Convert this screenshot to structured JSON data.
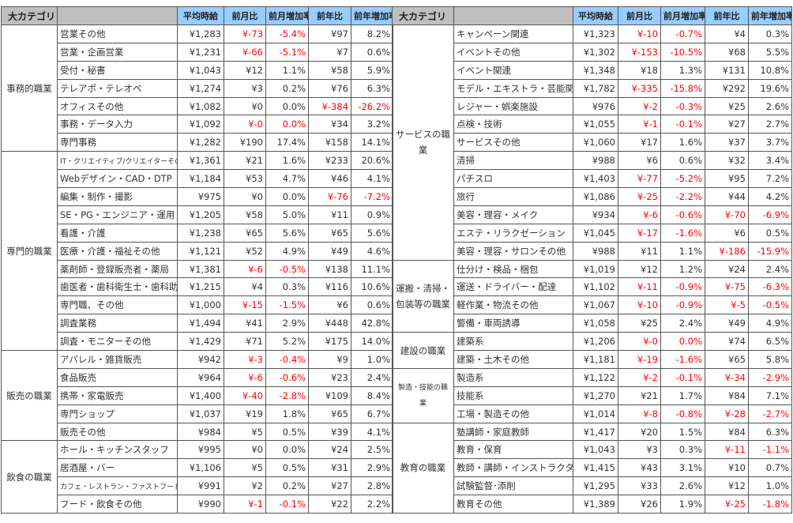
{
  "headers": {
    "category": "大カテゴリ",
    "sub": "",
    "avg": "平均時給",
    "mom": "前月比",
    "mom_rate": "前月増加率",
    "yoy": "前年比",
    "yoy_rate": "前年増加率"
  },
  "colors": {
    "negative": "#ff0000",
    "header_gray": "#bfbfbf",
    "header_blue": "#99ccff"
  },
  "left": [
    {
      "category": "事務的職業",
      "rows": [
        [
          "営業その他",
          "¥1,283",
          "¥-73",
          "-5.4%",
          "¥97",
          "8.2%"
        ],
        [
          "営業・企画営業",
          "¥1,231",
          "¥-66",
          "-5.1%",
          "¥7",
          "0.6%"
        ],
        [
          "受付・秘書",
          "¥1,043",
          "¥12",
          "1.1%",
          "¥58",
          "5.9%"
        ],
        [
          "テレアポ・テレオペ",
          "¥1,274",
          "¥3",
          "0.2%",
          "¥76",
          "6.3%"
        ],
        [
          "オフィスその他",
          "¥1,082",
          "¥0",
          "0.0%",
          "¥-384",
          "-26.2%"
        ],
        [
          "事務・データ入力",
          "¥1,092",
          "¥-0",
          "0.0%",
          "¥34",
          "3.2%"
        ],
        [
          "専門事務",
          "¥1,282",
          "¥190",
          "17.4%",
          "¥158",
          "14.1%"
        ]
      ]
    },
    {
      "category": "専門的職業",
      "rows": [
        [
          "IT・クリエイティブ/クリエイターその他",
          "¥1,361",
          "¥21",
          "1.6%",
          "¥233",
          "20.6%"
        ],
        [
          "Webデザイン・CAD・DTP",
          "¥1,184",
          "¥53",
          "4.7%",
          "¥46",
          "4.1%"
        ],
        [
          "編集・制作・撮影",
          "¥975",
          "¥0",
          "0.0%",
          "¥-76",
          "-7.2%"
        ],
        [
          "SE・PG・エンジニア・運用",
          "¥1,205",
          "¥58",
          "5.0%",
          "¥11",
          "0.9%"
        ],
        [
          "看護・介護",
          "¥1,238",
          "¥65",
          "5.6%",
          "¥65",
          "5.6%"
        ],
        [
          "医療・介護・福祉その他",
          "¥1,121",
          "¥52",
          "4.9%",
          "¥49",
          "4.6%"
        ],
        [
          "薬剤師・登録販売者・薬局",
          "¥1,381",
          "¥-6",
          "-0.5%",
          "¥138",
          "11.1%"
        ],
        [
          "歯医者・歯科衛生士・歯科助手",
          "¥1,215",
          "¥4",
          "0.3%",
          "¥116",
          "10.6%"
        ],
        [
          "専門職、その他",
          "¥1,000",
          "¥-15",
          "-1.5%",
          "¥6",
          "0.6%"
        ],
        [
          "調査業務",
          "¥1,494",
          "¥41",
          "2.9%",
          "¥448",
          "42.8%"
        ],
        [
          "調査・モニターその他",
          "¥1,429",
          "¥71",
          "5.2%",
          "¥175",
          "14.0%"
        ]
      ]
    },
    {
      "category": "販売の職業",
      "rows": [
        [
          "アパレル・雑貨販売",
          "¥942",
          "¥-3",
          "-0.4%",
          "¥9",
          "1.0%"
        ],
        [
          "食品販売",
          "¥964",
          "¥-6",
          "-0.6%",
          "¥23",
          "2.4%"
        ],
        [
          "携帯・家電販売",
          "¥1,400",
          "¥-40",
          "-2.8%",
          "¥109",
          "8.4%"
        ],
        [
          "専門ショップ",
          "¥1,037",
          "¥19",
          "1.8%",
          "¥65",
          "6.7%"
        ],
        [
          "販売その他",
          "¥984",
          "¥5",
          "0.5%",
          "¥39",
          "4.1%"
        ]
      ]
    },
    {
      "category": "飲食の職業",
      "rows": [
        [
          "ホール・キッチンスタッフ",
          "¥995",
          "¥0",
          "0.0%",
          "¥24",
          "2.5%"
        ],
        [
          "居酒屋・バー",
          "¥1,106",
          "¥5",
          "0.5%",
          "¥31",
          "2.9%"
        ],
        [
          "カフェ・レストラン・ファストフード",
          "¥991",
          "¥2",
          "0.2%",
          "¥27",
          "2.8%"
        ],
        [
          "フード・飲食その他",
          "¥990",
          "¥-1",
          "-0.1%",
          "¥22",
          "2.2%"
        ]
      ]
    }
  ],
  "right": [
    {
      "category": "サービスの職業",
      "rows": [
        [
          "キャンペーン関連",
          "¥1,323",
          "¥-10",
          "-0.7%",
          "¥4",
          "0.3%"
        ],
        [
          "イベントその他",
          "¥1,302",
          "¥-153",
          "-10.5%",
          "¥68",
          "5.5%"
        ],
        [
          "イベント関連",
          "¥1,348",
          "¥18",
          "1.3%",
          "¥131",
          "10.8%"
        ],
        [
          "モデル・エキストラ・芸能関連",
          "¥1,782",
          "¥-335",
          "-15.8%",
          "¥292",
          "19.6%"
        ],
        [
          "レジャー・娯楽施設",
          "¥976",
          "¥-2",
          "-0.3%",
          "¥25",
          "2.6%"
        ],
        [
          "点検・技術",
          "¥1,055",
          "¥-1",
          "-0.1%",
          "¥27",
          "2.7%"
        ],
        [
          "サービスその他",
          "¥1,060",
          "¥17",
          "1.6%",
          "¥37",
          "3.7%"
        ],
        [
          "清掃",
          "¥988",
          "¥6",
          "0.6%",
          "¥32",
          "3.4%"
        ],
        [
          "パチスロ",
          "¥1,403",
          "¥-77",
          "-5.2%",
          "¥95",
          "7.2%"
        ],
        [
          "旅行",
          "¥1,086",
          "¥-25",
          "-2.2%",
          "¥44",
          "4.2%"
        ],
        [
          "美容・理容・メイク",
          "¥934",
          "¥-6",
          "-0.6%",
          "¥-70",
          "-6.9%"
        ],
        [
          "エステ・リラクゼーション",
          "¥1,045",
          "¥-17",
          "-1.6%",
          "¥6",
          "0.5%"
        ],
        [
          "美容・理容・サロンその他",
          "¥988",
          "¥11",
          "1.1%",
          "¥-186",
          "-15.9%"
        ]
      ]
    },
    {
      "category": "運搬・清掃・包装等の職業",
      "rows": [
        [
          "仕分け・検品・梱包",
          "¥1,019",
          "¥12",
          "1.2%",
          "¥24",
          "2.4%"
        ],
        [
          "運送・ドライバー・配達",
          "¥1,102",
          "¥-11",
          "-0.9%",
          "¥-75",
          "-6.3%"
        ],
        [
          "軽作業・物流その他",
          "¥1,067",
          "¥-10",
          "-0.9%",
          "¥-5",
          "-0.5%"
        ],
        [
          "警備・車両誘導",
          "¥1,058",
          "¥25",
          "2.4%",
          "¥49",
          "4.9%"
        ]
      ]
    },
    {
      "category": "建設の職業",
      "rows": [
        [
          "建築系",
          "¥1,206",
          "¥-0",
          "0.0%",
          "¥74",
          "6.5%"
        ],
        [
          "建築・土木その他",
          "¥1,181",
          "¥-19",
          "-1.6%",
          "¥65",
          "5.8%"
        ]
      ]
    },
    {
      "category": "製造・技能の職業",
      "rows": [
        [
          "製造系",
          "¥1,122",
          "¥-2",
          "-0.1%",
          "¥-34",
          "-2.9%"
        ],
        [
          "技能系",
          "¥1,270",
          "¥21",
          "1.7%",
          "¥84",
          "7.1%"
        ],
        [
          "工場・製造その他",
          "¥1,014",
          "¥-8",
          "-0.8%",
          "¥-28",
          "-2.7%"
        ]
      ]
    },
    {
      "category": "教育の職業",
      "rows": [
        [
          "塾講師・家庭教師",
          "¥1,417",
          "¥20",
          "1.5%",
          "¥84",
          "6.3%"
        ],
        [
          "教育・保育",
          "¥1,043",
          "¥3",
          "0.3%",
          "¥-11",
          "-1.1%"
        ],
        [
          "教師・講師・インストラクター",
          "¥1,415",
          "¥43",
          "3.1%",
          "¥10",
          "0.7%"
        ],
        [
          "試験監督･添削",
          "¥1,295",
          "¥33",
          "2.6%",
          "¥12",
          "1.0%"
        ],
        [
          "教育その他",
          "¥1,389",
          "¥26",
          "1.9%",
          "¥-25",
          "-1.8%"
        ]
      ]
    }
  ]
}
